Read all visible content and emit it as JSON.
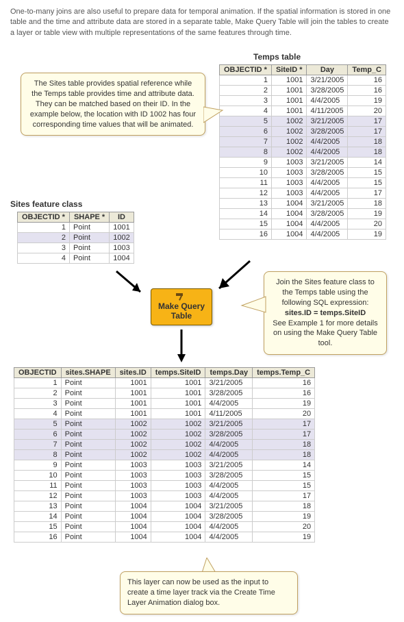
{
  "intro": "One-to-many joins are also useful to prepare data for temporal animation. If the spatial information is stored in one table and the time and attribute data are stored in a separate table, Make Query Table will join the tables to create a layer or table view with multiple representations of the same features through time.",
  "titles": {
    "temps": "Temps table",
    "sites": "Sites feature class"
  },
  "callouts": {
    "c1": "The Sites table provides spatial reference while the Temps table provides time and attribute data. They can be matched based on their ID. In the example below, the location with ID 1002 has four corresponding time values that will be animated.",
    "c2a": "Join the Sites feature class to the Temps table using the following SQL expression:",
    "c2b": "sites.ID = temps.SiteID",
    "c2c": "See Example 1 for more details on using the Make Query Table tool.",
    "c3": "This layer can now be used as the input to create a time layer track via the Create Time Layer Animation dialog box."
  },
  "mqt": {
    "line1": "Make Query",
    "line2": "Table"
  },
  "temps": {
    "cols": [
      "OBJECTID *",
      "SiteID *",
      "Day",
      "Temp_C"
    ],
    "rows": [
      [
        "1",
        "1001",
        "3/21/2005",
        "16"
      ],
      [
        "2",
        "1001",
        "3/28/2005",
        "16"
      ],
      [
        "3",
        "1001",
        "4/4/2005",
        "19"
      ],
      [
        "4",
        "1001",
        "4/11/2005",
        "20"
      ],
      [
        "5",
        "1002",
        "3/21/2005",
        "17"
      ],
      [
        "6",
        "1002",
        "3/28/2005",
        "17"
      ],
      [
        "7",
        "1002",
        "4/4/2005",
        "18"
      ],
      [
        "8",
        "1002",
        "4/4/2005",
        "18"
      ],
      [
        "9",
        "1003",
        "3/21/2005",
        "14"
      ],
      [
        "10",
        "1003",
        "3/28/2005",
        "15"
      ],
      [
        "11",
        "1003",
        "4/4/2005",
        "15"
      ],
      [
        "12",
        "1003",
        "4/4/2005",
        "17"
      ],
      [
        "13",
        "1004",
        "3/21/2005",
        "18"
      ],
      [
        "14",
        "1004",
        "3/28/2005",
        "19"
      ],
      [
        "15",
        "1004",
        "4/4/2005",
        "20"
      ],
      [
        "16",
        "1004",
        "4/4/2005",
        "19"
      ]
    ],
    "hl": [
      4,
      5,
      6,
      7
    ]
  },
  "sites": {
    "cols": [
      "OBJECTID *",
      "SHAPE *",
      "ID"
    ],
    "rows": [
      [
        "1",
        "Point",
        "1001"
      ],
      [
        "2",
        "Point",
        "1002"
      ],
      [
        "3",
        "Point",
        "1003"
      ],
      [
        "4",
        "Point",
        "1004"
      ]
    ],
    "hl": [
      1
    ]
  },
  "result": {
    "cols": [
      "OBJECTID",
      "sites.SHAPE",
      "sites.ID",
      "temps.SiteID",
      "temps.Day",
      "temps.Temp_C"
    ],
    "rows": [
      [
        "1",
        "Point",
        "1001",
        "1001",
        "3/21/2005",
        "16"
      ],
      [
        "2",
        "Point",
        "1001",
        "1001",
        "3/28/2005",
        "16"
      ],
      [
        "3",
        "Point",
        "1001",
        "1001",
        "4/4/2005",
        "19"
      ],
      [
        "4",
        "Point",
        "1001",
        "1001",
        "4/11/2005",
        "20"
      ],
      [
        "5",
        "Point",
        "1002",
        "1002",
        "3/21/2005",
        "17"
      ],
      [
        "6",
        "Point",
        "1002",
        "1002",
        "3/28/2005",
        "17"
      ],
      [
        "7",
        "Point",
        "1002",
        "1002",
        "4/4/2005",
        "18"
      ],
      [
        "8",
        "Point",
        "1002",
        "1002",
        "4/4/2005",
        "18"
      ],
      [
        "9",
        "Point",
        "1003",
        "1003",
        "3/21/2005",
        "14"
      ],
      [
        "10",
        "Point",
        "1003",
        "1003",
        "3/28/2005",
        "15"
      ],
      [
        "11",
        "Point",
        "1003",
        "1003",
        "4/4/2005",
        "15"
      ],
      [
        "12",
        "Point",
        "1003",
        "1003",
        "4/4/2005",
        "17"
      ],
      [
        "13",
        "Point",
        "1004",
        "1004",
        "3/21/2005",
        "18"
      ],
      [
        "14",
        "Point",
        "1004",
        "1004",
        "3/28/2005",
        "19"
      ],
      [
        "15",
        "Point",
        "1004",
        "1004",
        "4/4/2005",
        "20"
      ],
      [
        "16",
        "Point",
        "1004",
        "1004",
        "4/4/2005",
        "19"
      ]
    ],
    "hl": [
      4,
      5,
      6,
      7
    ]
  },
  "align": {
    "temps": [
      "num",
      "num",
      "txt",
      "num"
    ],
    "sites": [
      "num",
      "txt",
      "num"
    ],
    "result": [
      "num",
      "txt",
      "num",
      "num",
      "txt",
      "num"
    ]
  },
  "colors": {
    "hl": "#e4e2f0",
    "callout_bg": "#fffde8",
    "callout_border": "#c0a060",
    "mqt_bg": "#f7b316"
  }
}
